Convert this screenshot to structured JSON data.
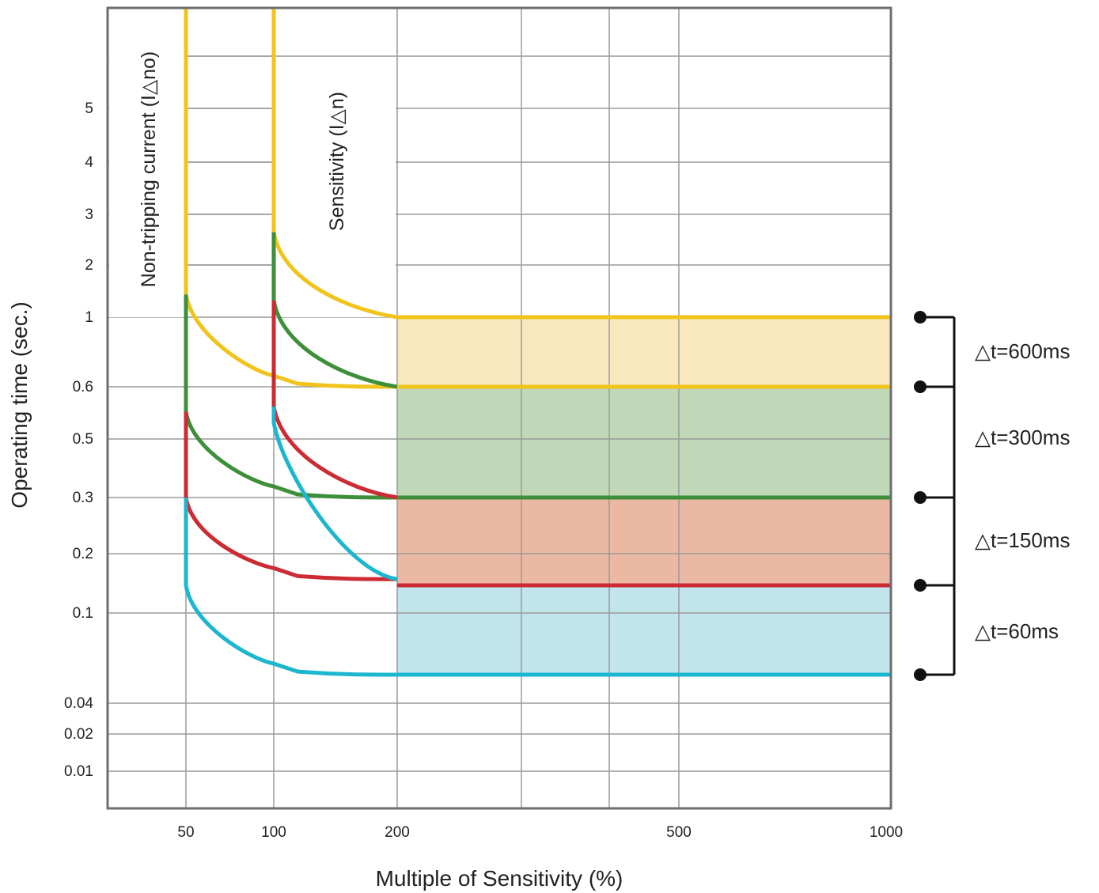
{
  "chart_data": {
    "type": "line",
    "xlabel": "Multiple of Sensitivity (%)",
    "ylabel": "Operating time (sec.)",
    "x_ticks": [
      {
        "value": 50,
        "label": "50"
      },
      {
        "value": 100,
        "label": "100"
      },
      {
        "value": 200,
        "label": "200"
      },
      {
        "value": 500,
        "label": "500"
      },
      {
        "value": 1000,
        "label": "1000"
      }
    ],
    "y_ticks": [
      {
        "value": 5,
        "label": "5"
      },
      {
        "value": 4,
        "label": "4"
      },
      {
        "value": 3,
        "label": "3"
      },
      {
        "value": 2,
        "label": "2"
      },
      {
        "value": 1,
        "label": "1"
      },
      {
        "value": 0.6,
        "label": "0.6"
      },
      {
        "value": 0.5,
        "label": "0.5"
      },
      {
        "value": 0.3,
        "label": "0.3"
      },
      {
        "value": 0.2,
        "label": "0.2"
      },
      {
        "value": 0.1,
        "label": "0.1"
      },
      {
        "value": 0.04,
        "label": "0.04"
      },
      {
        "value": 0.02,
        "label": "0.02"
      },
      {
        "value": 0.01,
        "label": "0.01"
      }
    ],
    "vertical_annotations": {
      "non_tripping": "Non-tripping current (I△no)",
      "sensitivity": "Sensitivity (I△n)"
    },
    "series": [
      {
        "color": "#f2c41b",
        "max_time": 1.0,
        "min_time": 0.6,
        "no_trip_time": 1.35,
        "trip_time": 2.6,
        "final_time": 1.0
      },
      {
        "color": "#3d8f3a",
        "max_time": 0.6,
        "min_time": 0.3,
        "no_trip_time": 0.55,
        "trip_time": 1.25,
        "final_time": 0.6
      },
      {
        "color": "#cc2b33",
        "max_time": 0.3,
        "min_time": 0.15,
        "no_trip_time": 0.3,
        "trip_time": 0.56,
        "final_time": 0.3
      },
      {
        "color": "#1db6cf",
        "max_time": 0.15,
        "min_time": 0.06,
        "no_trip_time": 0.14,
        "trip_time": 0.53,
        "final_time": 0.14
      }
    ],
    "bands": [
      {
        "label": "△t=600ms",
        "top": 1.0,
        "bottom": 0.6,
        "fill": "#f9e8bd"
      },
      {
        "label": "△t=300ms",
        "top": 0.6,
        "bottom": 0.3,
        "fill": "#c1d8b8"
      },
      {
        "label": "△t=150ms",
        "top": 0.3,
        "bottom": 0.14,
        "fill": "#ebb8a4"
      },
      {
        "label": "△t=60ms",
        "top": 0.14,
        "bottom": 0.06,
        "fill": "#c2e4ec"
      }
    ],
    "band_edge_times": [
      1.0,
      0.6,
      0.3,
      0.14,
      0.06
    ],
    "grid": true
  }
}
